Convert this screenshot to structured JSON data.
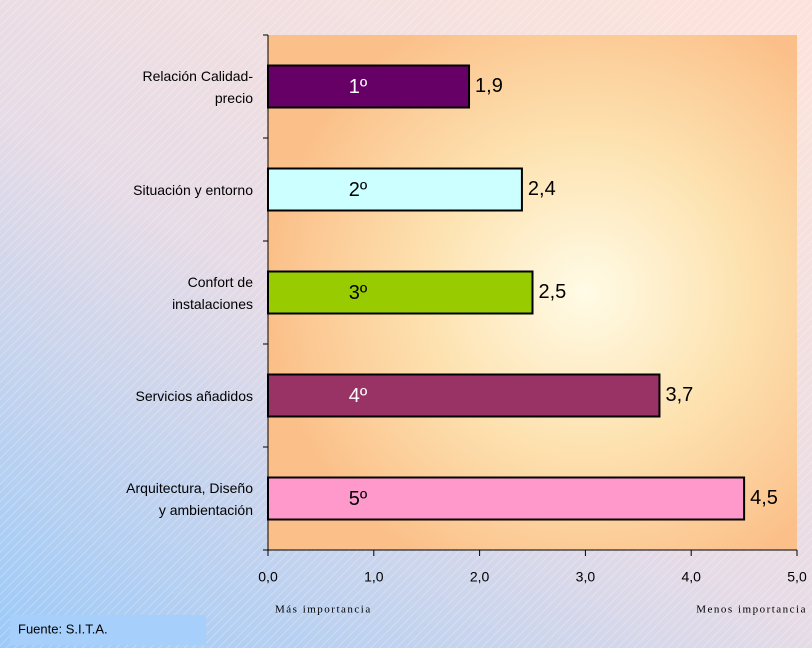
{
  "chart_data": {
    "type": "barh",
    "categories": [
      "Relación Calidad-\nprecio",
      "Situación y entorno",
      "Confort de\ninstalaciones",
      "Servicios añadidos",
      "Arquitectura, Diseño\ny ambientación"
    ],
    "values": [
      1.9,
      2.4,
      2.5,
      3.7,
      4.5
    ],
    "value_labels": [
      "1,9",
      "2,4",
      "2,5",
      "3,7",
      "4,5"
    ],
    "rank_labels": [
      "1º",
      "2º",
      "3º",
      "4º",
      "5º"
    ],
    "colors": [
      "#660066",
      "#ccffff",
      "#99cc00",
      "#993366",
      "#ff99cc"
    ],
    "xlim": [
      0,
      5
    ],
    "xticks": [
      {
        "value": 0,
        "label": "0,0"
      },
      {
        "value": 1,
        "label": "1,0"
      },
      {
        "value": 2,
        "label": "2,0"
      },
      {
        "value": 3,
        "label": "3,0"
      },
      {
        "value": 4,
        "label": "4,0"
      },
      {
        "value": 5,
        "label": "5,0"
      }
    ],
    "x_low_label": "Más importancia",
    "x_high_label": "Menos importancia",
    "source": "Fuente:  S.I.T.A."
  }
}
